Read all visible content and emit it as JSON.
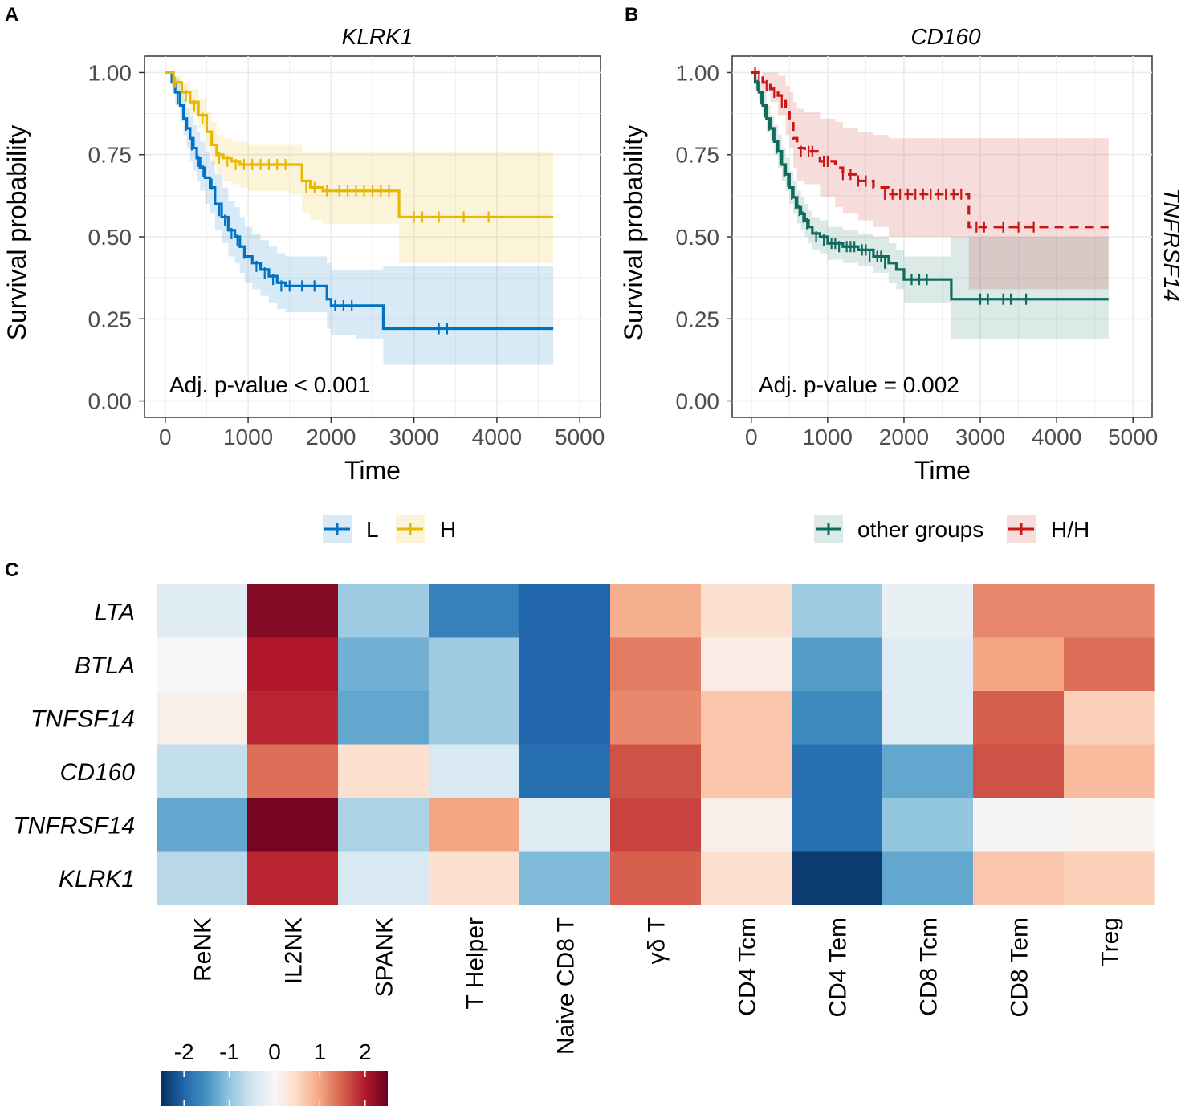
{
  "panels": {
    "a": "A",
    "b": "B",
    "c": "C"
  },
  "chart_data": [
    {
      "type": "line",
      "title": "KLRK1",
      "xlabel": "Time",
      "ylabel": "Survival probability",
      "xlim": [
        -250,
        5250
      ],
      "ylim": [
        -0.05,
        1.05
      ],
      "xticks": [
        "0",
        "1000",
        "2000",
        "3000",
        "4000",
        "5000"
      ],
      "yticks": [
        "0.00",
        "0.25",
        "0.50",
        "0.75",
        "1.00"
      ],
      "annotation": "Adj. p-value < 0.001",
      "legend": [
        "L",
        "H"
      ],
      "series": [
        {
          "name": "L",
          "color": "#0072c6",
          "dash": false,
          "x": [
            0,
            80,
            120,
            180,
            220,
            260,
            300,
            340,
            380,
            420,
            480,
            540,
            600,
            680,
            760,
            840,
            900,
            960,
            1050,
            1150,
            1250,
            1350,
            1450,
            1600,
            1950,
            2000,
            2300,
            2630,
            2700,
            3200,
            4000,
            4680
          ],
          "y": [
            1.0,
            0.97,
            0.94,
            0.9,
            0.86,
            0.83,
            0.8,
            0.77,
            0.74,
            0.71,
            0.68,
            0.65,
            0.6,
            0.56,
            0.52,
            0.5,
            0.47,
            0.44,
            0.42,
            0.4,
            0.38,
            0.36,
            0.35,
            0.35,
            0.31,
            0.29,
            0.29,
            0.22,
            0.22,
            0.22,
            0.22,
            0.22
          ],
          "lower": [
            1.0,
            0.94,
            0.9,
            0.85,
            0.81,
            0.77,
            0.73,
            0.7,
            0.67,
            0.64,
            0.6,
            0.57,
            0.52,
            0.48,
            0.44,
            0.42,
            0.39,
            0.36,
            0.34,
            0.32,
            0.3,
            0.28,
            0.27,
            0.27,
            0.22,
            0.2,
            0.19,
            0.11,
            0.11,
            0.11,
            0.11,
            0.11
          ],
          "upper": [
            1.0,
            0.99,
            0.98,
            0.95,
            0.92,
            0.89,
            0.87,
            0.84,
            0.82,
            0.79,
            0.76,
            0.73,
            0.69,
            0.65,
            0.61,
            0.59,
            0.56,
            0.53,
            0.51,
            0.49,
            0.47,
            0.45,
            0.44,
            0.44,
            0.42,
            0.4,
            0.4,
            0.41,
            0.41,
            0.41,
            0.41,
            0.41
          ],
          "censor_x": [
            150,
            250,
            320,
            400,
            460,
            560,
            650,
            720,
            800,
            870,
            950,
            1100,
            1200,
            1300,
            1400,
            1500,
            1650,
            1800,
            2050,
            2150,
            2250,
            3300,
            3400
          ],
          "censor_y": [
            0.92,
            0.84,
            0.78,
            0.73,
            0.7,
            0.66,
            0.58,
            0.55,
            0.51,
            0.49,
            0.45,
            0.41,
            0.39,
            0.37,
            0.35,
            0.35,
            0.35,
            0.35,
            0.29,
            0.29,
            0.29,
            0.22,
            0.22
          ]
        },
        {
          "name": "H",
          "color": "#e8b800",
          "dash": false,
          "x": [
            0,
            100,
            200,
            300,
            400,
            500,
            560,
            620,
            700,
            800,
            900,
            1000,
            1500,
            1650,
            1750,
            1900,
            2000,
            2800,
            2820,
            3500,
            4680
          ],
          "y": [
            1.0,
            0.97,
            0.94,
            0.91,
            0.87,
            0.82,
            0.78,
            0.75,
            0.74,
            0.73,
            0.72,
            0.72,
            0.72,
            0.67,
            0.65,
            0.64,
            0.64,
            0.64,
            0.56,
            0.56,
            0.56
          ],
          "lower": [
            1.0,
            0.95,
            0.91,
            0.87,
            0.83,
            0.77,
            0.72,
            0.69,
            0.67,
            0.66,
            0.65,
            0.64,
            0.63,
            0.57,
            0.55,
            0.54,
            0.54,
            0.54,
            0.42,
            0.42,
            0.42
          ],
          "upper": [
            1.0,
            0.99,
            0.97,
            0.95,
            0.92,
            0.88,
            0.85,
            0.81,
            0.8,
            0.79,
            0.79,
            0.78,
            0.78,
            0.76,
            0.76,
            0.76,
            0.76,
            0.76,
            0.76,
            0.76,
            0.76
          ],
          "censor_x": [
            120,
            250,
            350,
            450,
            650,
            750,
            850,
            950,
            1050,
            1150,
            1250,
            1350,
            1450,
            1700,
            1800,
            1950,
            2100,
            2200,
            2300,
            2400,
            2500,
            2600,
            2700,
            3000,
            3100,
            3300,
            3600,
            3900
          ],
          "censor_y": [
            0.97,
            0.93,
            0.9,
            0.86,
            0.74,
            0.73,
            0.72,
            0.72,
            0.72,
            0.72,
            0.72,
            0.72,
            0.72,
            0.65,
            0.65,
            0.64,
            0.64,
            0.64,
            0.64,
            0.64,
            0.64,
            0.64,
            0.64,
            0.56,
            0.56,
            0.56,
            0.56,
            0.56
          ]
        }
      ]
    },
    {
      "type": "line",
      "title": "CD160",
      "xlabel": "Time",
      "ylabel": "Survival probability",
      "strip_label": "TNFRSF14",
      "xlim": [
        -250,
        5250
      ],
      "ylim": [
        -0.05,
        1.05
      ],
      "xticks": [
        "0",
        "1000",
        "2000",
        "3000",
        "4000",
        "5000"
      ],
      "yticks": [
        "0.00",
        "0.25",
        "0.50",
        "0.75",
        "1.00"
      ],
      "annotation": "Adj. p-value = 0.002",
      "legend": [
        "other groups",
        "H/H"
      ],
      "series": [
        {
          "name": "other groups",
          "color": "#0e6b5e",
          "dash": false,
          "x": [
            0,
            50,
            100,
            150,
            200,
            250,
            300,
            350,
            400,
            450,
            500,
            550,
            600,
            650,
            700,
            750,
            800,
            900,
            1000,
            1200,
            1400,
            1600,
            1800,
            1900,
            2000,
            2300,
            2620,
            2700,
            3400,
            4680
          ],
          "y": [
            1.0,
            0.97,
            0.94,
            0.9,
            0.86,
            0.83,
            0.79,
            0.76,
            0.72,
            0.69,
            0.65,
            0.62,
            0.59,
            0.57,
            0.55,
            0.53,
            0.51,
            0.5,
            0.48,
            0.47,
            0.46,
            0.44,
            0.42,
            0.4,
            0.37,
            0.37,
            0.31,
            0.31,
            0.31,
            0.31
          ],
          "lower": [
            1.0,
            0.95,
            0.91,
            0.87,
            0.82,
            0.79,
            0.75,
            0.71,
            0.67,
            0.64,
            0.6,
            0.57,
            0.54,
            0.52,
            0.5,
            0.48,
            0.46,
            0.45,
            0.43,
            0.42,
            0.41,
            0.39,
            0.36,
            0.34,
            0.3,
            0.3,
            0.19,
            0.19,
            0.19,
            0.19
          ],
          "upper": [
            1.0,
            0.99,
            0.97,
            0.94,
            0.9,
            0.87,
            0.84,
            0.81,
            0.77,
            0.74,
            0.7,
            0.67,
            0.64,
            0.62,
            0.6,
            0.58,
            0.56,
            0.55,
            0.53,
            0.52,
            0.51,
            0.5,
            0.48,
            0.46,
            0.44,
            0.44,
            0.5,
            0.5,
            0.5,
            0.5
          ],
          "censor_x": [
            80,
            130,
            180,
            230,
            280,
            330,
            380,
            430,
            480,
            530,
            580,
            630,
            680,
            730,
            850,
            950,
            1050,
            1100,
            1150,
            1250,
            1300,
            1350,
            1450,
            1500,
            1550,
            1650,
            1700,
            1750,
            2100,
            2200,
            2300,
            3000,
            3100,
            3300,
            3400,
            3600
          ],
          "censor_y": [
            0.96,
            0.92,
            0.88,
            0.84,
            0.81,
            0.77,
            0.74,
            0.7,
            0.67,
            0.63,
            0.6,
            0.58,
            0.56,
            0.54,
            0.5,
            0.49,
            0.48,
            0.48,
            0.47,
            0.47,
            0.47,
            0.47,
            0.46,
            0.46,
            0.44,
            0.44,
            0.44,
            0.42,
            0.37,
            0.37,
            0.37,
            0.31,
            0.31,
            0.31,
            0.31,
            0.31
          ]
        },
        {
          "name": "H/H",
          "color": "#cc1414",
          "dash": true,
          "x": [
            0,
            150,
            250,
            350,
            450,
            500,
            550,
            600,
            700,
            900,
            1100,
            1200,
            1400,
            1600,
            1800,
            2000,
            2800,
            2850,
            3500,
            4680
          ],
          "y": [
            1.0,
            0.97,
            0.95,
            0.93,
            0.88,
            0.85,
            0.8,
            0.77,
            0.76,
            0.73,
            0.71,
            0.69,
            0.67,
            0.65,
            0.63,
            0.63,
            0.63,
            0.53,
            0.53,
            0.53
          ],
          "lower": [
            1.0,
            0.94,
            0.91,
            0.87,
            0.81,
            0.77,
            0.71,
            0.67,
            0.66,
            0.62,
            0.59,
            0.57,
            0.55,
            0.53,
            0.5,
            0.5,
            0.5,
            0.34,
            0.34,
            0.34
          ],
          "upper": [
            1.0,
            1.0,
            1.0,
            0.99,
            0.96,
            0.94,
            0.91,
            0.89,
            0.88,
            0.86,
            0.85,
            0.83,
            0.82,
            0.81,
            0.8,
            0.8,
            0.8,
            0.8,
            0.8,
            0.8
          ],
          "censor_x": [
            50,
            100,
            200,
            300,
            400,
            650,
            750,
            800,
            950,
            1000,
            1200,
            1300,
            1400,
            1500,
            1750,
            1850,
            1950,
            2050,
            2150,
            2250,
            2350,
            2450,
            2550,
            2650,
            2750,
            2950,
            3050,
            3300,
            3500,
            3700
          ],
          "censor_y": [
            1.0,
            0.99,
            0.96,
            0.94,
            0.91,
            0.76,
            0.76,
            0.76,
            0.73,
            0.73,
            0.69,
            0.69,
            0.67,
            0.67,
            0.63,
            0.63,
            0.63,
            0.63,
            0.63,
            0.63,
            0.63,
            0.63,
            0.63,
            0.63,
            0.63,
            0.53,
            0.53,
            0.53,
            0.53,
            0.53
          ]
        }
      ]
    },
    {
      "type": "heatmap",
      "rows": [
        "LTA",
        "BTLA",
        "TNFSF14",
        "CD160",
        "TNFRSF14",
        "KLRK1"
      ],
      "columns": [
        "ReNK",
        "IL2NK",
        "SPANK",
        "T Helper",
        "Naive CD8 T",
        "γδ T",
        "CD4 Tcm",
        "CD4 Tem",
        "CD8 Tcm",
        "CD8 Tem",
        "Treg"
      ],
      "values": [
        [
          -0.3,
          2.3,
          -0.9,
          -1.7,
          -2.0,
          0.9,
          0.4,
          -0.9,
          -0.2,
          1.2,
          1.2
        ],
        [
          0.0,
          2.0,
          -1.2,
          -0.9,
          -2.0,
          1.3,
          0.2,
          -1.4,
          -0.3,
          1.0,
          1.4
        ],
        [
          0.15,
          1.9,
          -1.3,
          -0.9,
          -2.0,
          1.2,
          0.7,
          -1.6,
          -0.3,
          1.5,
          0.6
        ],
        [
          -0.6,
          1.4,
          0.4,
          -0.4,
          -1.9,
          1.6,
          0.7,
          -1.9,
          -1.3,
          1.6,
          0.8
        ],
        [
          -1.3,
          2.4,
          -0.8,
          1.0,
          -0.3,
          1.7,
          0.15,
          -1.9,
          -1.0,
          -0.05,
          0.05
        ],
        [
          -0.7,
          1.9,
          -0.4,
          0.4,
          -1.1,
          1.5,
          0.4,
          -2.4,
          -1.3,
          0.7,
          0.6
        ]
      ],
      "colorbar": {
        "ticks": [
          "-2",
          "-1",
          "0",
          "1",
          "2"
        ],
        "range": [
          -2.5,
          2.5
        ]
      }
    }
  ]
}
